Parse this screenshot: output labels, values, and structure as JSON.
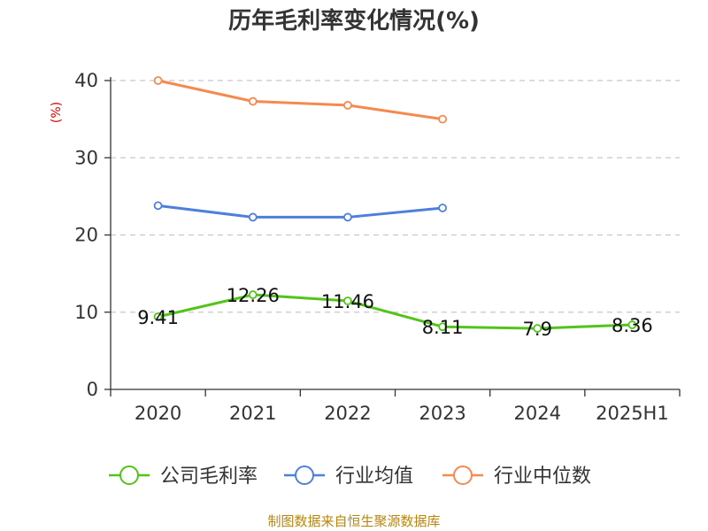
{
  "chart_data": {
    "type": "line",
    "title": "历年毛利率变化情况(%)",
    "ylabel": "(%)",
    "xlabel": "",
    "ylim": [
      0,
      40
    ],
    "yticks": [
      0,
      10,
      20,
      30,
      40
    ],
    "categories": [
      "2020",
      "2021",
      "2022",
      "2023",
      "2024",
      "2025H1"
    ],
    "grid": true,
    "legend_position": "bottom",
    "series": [
      {
        "name": "公司毛利率",
        "color": "#52c41a",
        "values": [
          9.41,
          12.26,
          11.46,
          8.11,
          7.9,
          8.36
        ],
        "labels": [
          "9.41",
          "12.26",
          "11.46",
          "8.11",
          "7.9",
          "8.36"
        ]
      },
      {
        "name": "行业均值",
        "color": "#4f7fdc",
        "values": [
          23.8,
          22.3,
          22.3,
          23.5,
          null,
          null
        ]
      },
      {
        "name": "行业中位数",
        "color": "#f5894e",
        "values": [
          40.0,
          37.3,
          36.8,
          35.0,
          null,
          null
        ]
      }
    ]
  },
  "source_text": "制图数据来自恒生聚源数据库"
}
